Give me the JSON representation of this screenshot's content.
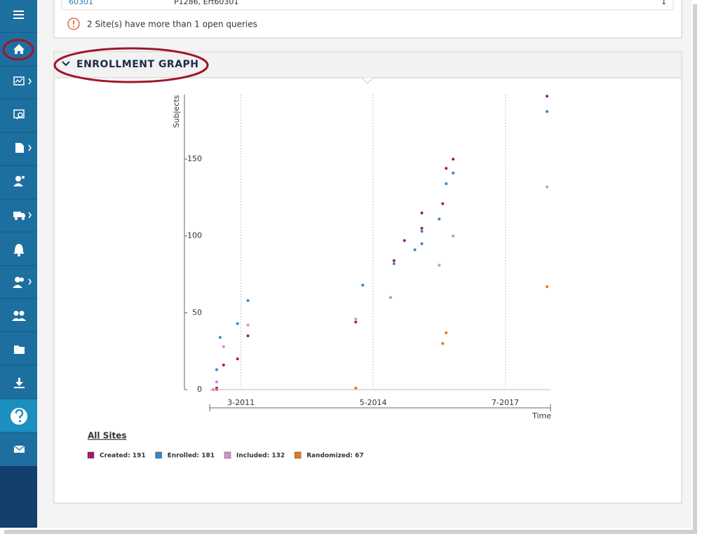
{
  "table": {
    "rows": [
      [
        "60301",
        "P1286, Ert60301",
        "1"
      ]
    ]
  },
  "notice": "2 Site(s) have more than 1 open queries",
  "panel": {
    "title": "ENROLLMENT GRAPH"
  },
  "legend_heading": "All Sites",
  "chart_data": {
    "type": "line",
    "y_label": "Subjects",
    "x_label": "Time",
    "xlim": [
      "2010-06",
      "2018-08"
    ],
    "xticks": [
      {
        "value": "2011-03",
        "label": "3-2011"
      },
      {
        "value": "2014-05",
        "label": "5-2014"
      },
      {
        "value": "2017-07",
        "label": "7-2017"
      }
    ],
    "ylim": [
      0,
      192
    ],
    "yticks": [
      0,
      50,
      100,
      150
    ],
    "grid": "x",
    "series": [
      {
        "name": "Created: 191",
        "color": "#a3176e",
        "x": [
          "2010-07",
          "2010-08",
          "2010-10",
          "2011-02",
          "2011-05",
          "2013-12",
          "2014-10",
          "2014-11",
          "2015-02",
          "2015-07",
          "2015-07",
          "2016-01",
          "2016-02",
          "2016-04",
          "2018-07"
        ],
        "values": [
          0,
          1,
          16,
          20,
          35,
          44,
          60,
          84,
          97,
          105,
          115,
          121,
          144,
          150,
          191
        ]
      },
      {
        "name": "Enrolled: 181",
        "color": "#3a86c4",
        "x": [
          "2010-07",
          "2010-08",
          "2010-08",
          "2010-09",
          "2011-02",
          "2011-05",
          "2014-02",
          "2014-11",
          "2015-05",
          "2015-07",
          "2015-07",
          "2015-12",
          "2016-02",
          "2016-04",
          "2018-07"
        ],
        "values": [
          0,
          5,
          13,
          34,
          43,
          58,
          68,
          82,
          91,
          95,
          103,
          111,
          134,
          141,
          181
        ]
      },
      {
        "name": "Included: 132",
        "color": "#d58fc9",
        "x": [
          "2010-07",
          "2010-08",
          "2010-10",
          "2011-05",
          "2013-12",
          "2014-10",
          "2015-12",
          "2016-04",
          "2018-07"
        ],
        "values": [
          0,
          5,
          28,
          42,
          46,
          60,
          81,
          100,
          132
        ]
      },
      {
        "name": "Randomized: 67",
        "color": "#e07b16",
        "x": [
          "2010-08",
          "2013-12",
          "2016-01",
          "2016-02",
          "2018-07"
        ],
        "values": [
          0,
          1,
          30,
          37,
          67
        ]
      }
    ]
  }
}
